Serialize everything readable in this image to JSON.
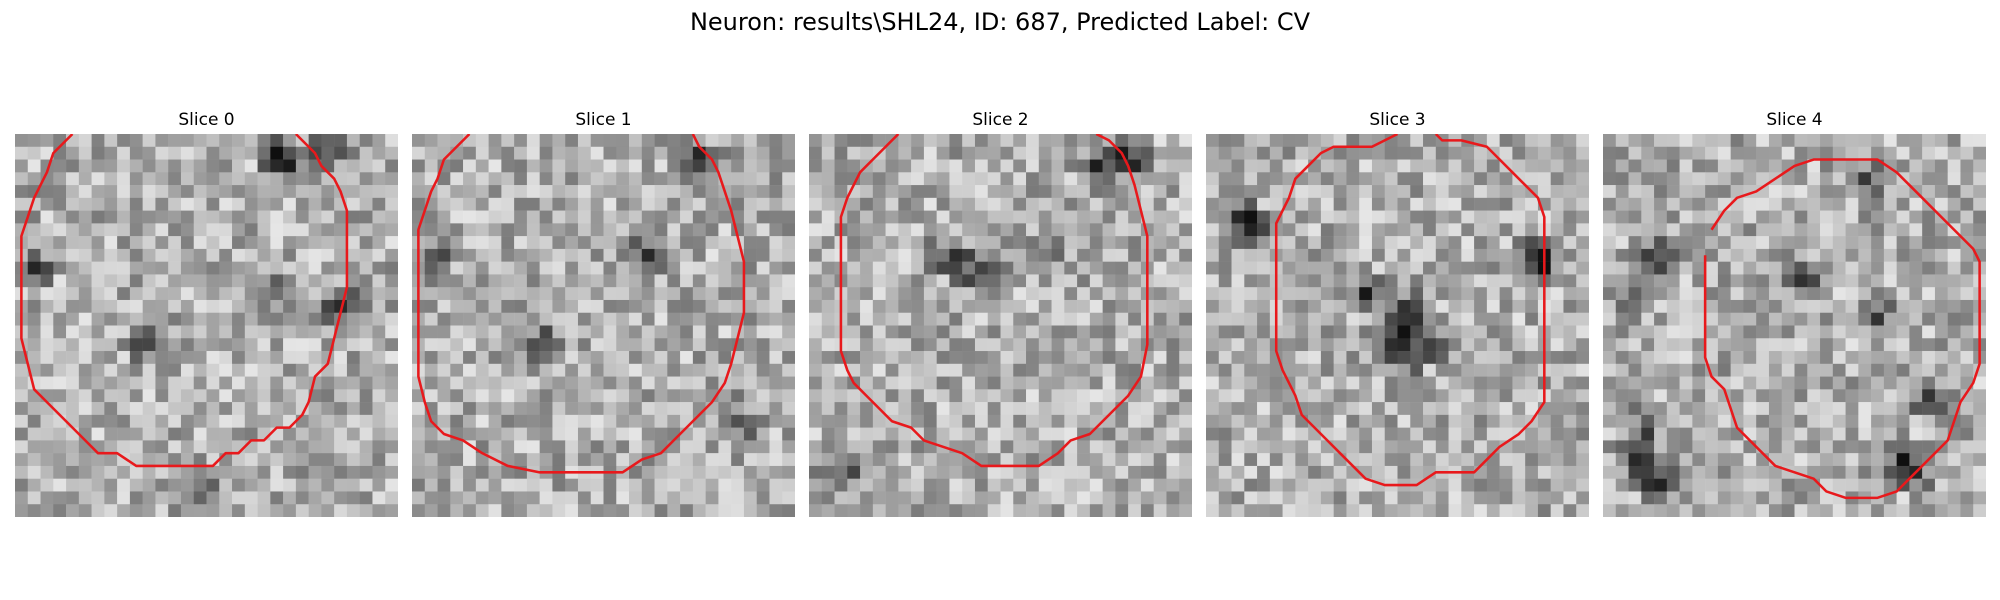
{
  "figure": {
    "title": "Neuron: results\\SHL24, ID: 687, Predicted Label: CV"
  },
  "colors": {
    "contour": "#e8191c",
    "background": "#ffffff"
  },
  "slices": [
    {
      "label": "Slice 0",
      "contour": [
        [
          4.5,
          0
        ],
        [
          3,
          1.5
        ],
        [
          2.5,
          3
        ],
        [
          2,
          4
        ],
        [
          1.5,
          5
        ],
        [
          1,
          6.5
        ],
        [
          0.5,
          8
        ],
        [
          0.5,
          11
        ],
        [
          0.5,
          13
        ],
        [
          0.5,
          16
        ],
        [
          1,
          18
        ],
        [
          1.5,
          20
        ],
        [
          2.5,
          21
        ],
        [
          3.5,
          22
        ],
        [
          4.5,
          23
        ],
        [
          5.5,
          24
        ],
        [
          6.5,
          25
        ],
        [
          8,
          25
        ],
        [
          9.5,
          26
        ],
        [
          11,
          26
        ],
        [
          13,
          26
        ],
        [
          15.5,
          26
        ],
        [
          16.5,
          25
        ],
        [
          17.5,
          25
        ],
        [
          18.5,
          24
        ],
        [
          19.5,
          24
        ],
        [
          20.5,
          23
        ],
        [
          21.5,
          23
        ],
        [
          22.5,
          22
        ],
        [
          23,
          21
        ],
        [
          23.5,
          19
        ],
        [
          24.5,
          18
        ],
        [
          25,
          16
        ],
        [
          25.5,
          14
        ],
        [
          26,
          12
        ],
        [
          26,
          10
        ],
        [
          26,
          8
        ],
        [
          26,
          6
        ],
        [
          25.5,
          4.5
        ],
        [
          25,
          3.5
        ],
        [
          24,
          2.5
        ],
        [
          23.5,
          1.5
        ],
        [
          22,
          0
        ]
      ],
      "dark_blobs": [
        [
          20,
          1
        ],
        [
          21,
          2
        ],
        [
          24,
          1
        ],
        [
          25,
          13
        ],
        [
          1,
          10
        ],
        [
          14,
          27
        ],
        [
          10,
          16
        ],
        [
          20,
          12
        ]
      ],
      "seed": 11
    },
    {
      "label": "Slice 1",
      "contour": [
        [
          4.5,
          0
        ],
        [
          3.5,
          1
        ],
        [
          2.5,
          2
        ],
        [
          2,
          3.5
        ],
        [
          1.5,
          4.5
        ],
        [
          1,
          6
        ],
        [
          0.5,
          7.5
        ],
        [
          0.5,
          10
        ],
        [
          0.5,
          12
        ],
        [
          0.5,
          15
        ],
        [
          0.5,
          17
        ],
        [
          0.5,
          19
        ],
        [
          1,
          21
        ],
        [
          1.5,
          22.5
        ],
        [
          2.5,
          23.5
        ],
        [
          4,
          24
        ],
        [
          5.5,
          25
        ],
        [
          7.5,
          26
        ],
        [
          10,
          26.5
        ],
        [
          13,
          26.5
        ],
        [
          16.5,
          26.5
        ],
        [
          18,
          25.5
        ],
        [
          19.5,
          25
        ],
        [
          20.5,
          24
        ],
        [
          21.5,
          23
        ],
        [
          22.5,
          22
        ],
        [
          23.5,
          21
        ],
        [
          24.5,
          19.5
        ],
        [
          25,
          18
        ],
        [
          25.5,
          16
        ],
        [
          26,
          14
        ],
        [
          26,
          12
        ],
        [
          26,
          10
        ],
        [
          25.5,
          8
        ],
        [
          25,
          6
        ],
        [
          24.5,
          4.5
        ],
        [
          24,
          3
        ],
        [
          23.5,
          2
        ],
        [
          22.5,
          1
        ],
        [
          22,
          0
        ]
      ],
      "dark_blobs": [
        [
          21,
          1
        ],
        [
          23,
          2
        ],
        [
          25,
          22
        ],
        [
          18,
          9
        ],
        [
          10,
          16
        ],
        [
          1,
          9
        ]
      ],
      "seed": 23
    },
    {
      "label": "Slice 2",
      "contour": [
        [
          7,
          0
        ],
        [
          6,
          1
        ],
        [
          5,
          2
        ],
        [
          4,
          3
        ],
        [
          3.5,
          4
        ],
        [
          3,
          5
        ],
        [
          2.5,
          6.5
        ],
        [
          2.5,
          9
        ],
        [
          2.5,
          12
        ],
        [
          2.5,
          15
        ],
        [
          2.5,
          17
        ],
        [
          3,
          18.5
        ],
        [
          3.5,
          19.5
        ],
        [
          4.5,
          20.5
        ],
        [
          5.5,
          21.5
        ],
        [
          6.5,
          22.5
        ],
        [
          8,
          23
        ],
        [
          9,
          24
        ],
        [
          10.5,
          24.5
        ],
        [
          12,
          25
        ],
        [
          13.5,
          26
        ],
        [
          16,
          26
        ],
        [
          18,
          26
        ],
        [
          19.5,
          25
        ],
        [
          20.5,
          24
        ],
        [
          22,
          23.5
        ],
        [
          23,
          22.5
        ],
        [
          24,
          21.5
        ],
        [
          25,
          20.5
        ],
        [
          26,
          19
        ],
        [
          26.5,
          16.5
        ],
        [
          26.5,
          13
        ],
        [
          26.5,
          10.5
        ],
        [
          26.5,
          8
        ],
        [
          26,
          6
        ],
        [
          25.5,
          4
        ],
        [
          25,
          2.5
        ],
        [
          24.5,
          1.5
        ],
        [
          23.5,
          0.5
        ],
        [
          22.5,
          0
        ]
      ],
      "dark_blobs": [
        [
          24,
          1
        ],
        [
          25,
          2
        ],
        [
          22,
          2
        ],
        [
          12,
          10
        ],
        [
          14,
          11
        ],
        [
          10,
          9
        ],
        [
          18,
          9
        ],
        [
          2,
          26
        ]
      ],
      "seed": 37
    },
    {
      "label": "Slice 3",
      "contour": [
        [
          15,
          0
        ],
        [
          13,
          1
        ],
        [
          11.5,
          1
        ],
        [
          10,
          1
        ],
        [
          9,
          1.5
        ],
        [
          8,
          2.5
        ],
        [
          7,
          3.5
        ],
        [
          6.5,
          5
        ],
        [
          6,
          6
        ],
        [
          5.5,
          7
        ],
        [
          5.5,
          9.5
        ],
        [
          5.5,
          12
        ],
        [
          5.5,
          14.5
        ],
        [
          5.5,
          17
        ],
        [
          6,
          18.5
        ],
        [
          7,
          20.5
        ],
        [
          7.5,
          22
        ],
        [
          8.5,
          23
        ],
        [
          9.5,
          24
        ],
        [
          10.5,
          25
        ],
        [
          11.5,
          26
        ],
        [
          12.5,
          27
        ],
        [
          14,
          27.5
        ],
        [
          16.5,
          27.5
        ],
        [
          18,
          26.5
        ],
        [
          19.5,
          26.5
        ],
        [
          21,
          26.5
        ],
        [
          22,
          25.5
        ],
        [
          23,
          24.5
        ],
        [
          24.5,
          23.5
        ],
        [
          25.5,
          22.5
        ],
        [
          26.5,
          21
        ],
        [
          26.5,
          18
        ],
        [
          26.5,
          15
        ],
        [
          26.5,
          12
        ],
        [
          26.5,
          9
        ],
        [
          26.5,
          6.5
        ],
        [
          26,
          5
        ],
        [
          25,
          4
        ],
        [
          24,
          3
        ],
        [
          23,
          2
        ],
        [
          22,
          1
        ],
        [
          20,
          0.5
        ],
        [
          18.5,
          0.5
        ],
        [
          18,
          0
        ]
      ],
      "dark_blobs": [
        [
          2,
          6
        ],
        [
          3,
          7
        ],
        [
          15,
          13
        ],
        [
          16,
          14
        ],
        [
          14,
          15
        ],
        [
          17,
          16
        ],
        [
          15,
          17
        ],
        [
          12,
          12
        ],
        [
          25,
          9
        ],
        [
          26,
          10
        ]
      ],
      "seed": 53
    },
    {
      "label": "Slice 4",
      "contour": [
        [
          8.5,
          7.5
        ],
        [
          9.5,
          6
        ],
        [
          10.5,
          5
        ],
        [
          12,
          4.5
        ],
        [
          13.5,
          3.5
        ],
        [
          15,
          2.5
        ],
        [
          16.5,
          2
        ],
        [
          19,
          2
        ],
        [
          21.5,
          2
        ],
        [
          23,
          3
        ],
        [
          24,
          4
        ],
        [
          25,
          5
        ],
        [
          26,
          6
        ],
        [
          27,
          7
        ],
        [
          28,
          8
        ],
        [
          29,
          9
        ],
        [
          29.5,
          10
        ],
        [
          29.5,
          12
        ],
        [
          29.5,
          14
        ],
        [
          29.5,
          16
        ],
        [
          29.5,
          18
        ],
        [
          29,
          19.5
        ],
        [
          28,
          21
        ],
        [
          27.5,
          22.5
        ],
        [
          27,
          24
        ],
        [
          26,
          25
        ],
        [
          25,
          26
        ],
        [
          24,
          27
        ],
        [
          23,
          28
        ],
        [
          21.5,
          28.5
        ],
        [
          19,
          28.5
        ],
        [
          17.5,
          28
        ],
        [
          16.5,
          27
        ],
        [
          15,
          26.5
        ],
        [
          13.5,
          26
        ],
        [
          12.5,
          25
        ],
        [
          11.5,
          24
        ],
        [
          10.5,
          23
        ],
        [
          10,
          21.5
        ],
        [
          9.5,
          20
        ],
        [
          8.5,
          19
        ],
        [
          8,
          17.5
        ],
        [
          8,
          15
        ],
        [
          8,
          12
        ],
        [
          8,
          9.5
        ]
      ],
      "dark_blobs": [
        [
          3,
          9
        ],
        [
          4,
          10
        ],
        [
          2,
          12
        ],
        [
          3,
          22
        ],
        [
          2,
          24
        ],
        [
          3,
          26
        ],
        [
          4,
          27
        ],
        [
          23,
          25
        ],
        [
          24,
          26
        ],
        [
          25,
          20
        ],
        [
          15,
          11
        ],
        [
          21,
          14
        ],
        [
          20,
          3
        ]
      ],
      "seed": 71
    }
  ]
}
